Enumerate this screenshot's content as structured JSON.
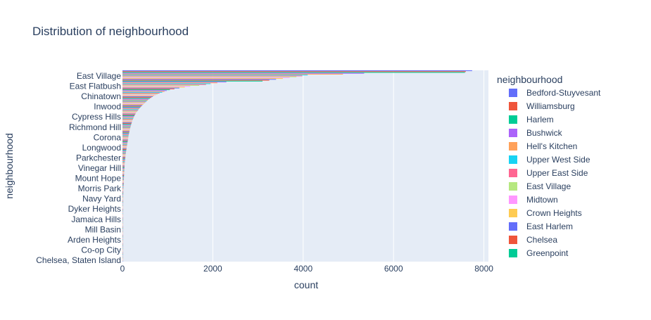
{
  "chart_data": {
    "type": "bar",
    "orientation": "horizontal",
    "title": "Distribution of neighbourhood",
    "xlabel": "count",
    "ylabel": "neighbourhood",
    "xlim": [
      0,
      8100
    ],
    "xticks": [
      0,
      2000,
      4000,
      6000,
      8000
    ],
    "xtick_labels": [
      "0",
      "2000",
      "4000",
      "6000",
      "8000"
    ],
    "grid": true,
    "legend": {
      "title": "neighbourhood",
      "placement": "right",
      "entries": [
        {
          "name": "Bedford-Stuyvesant",
          "color": "#636efa"
        },
        {
          "name": "Williamsburg",
          "color": "#ef553b"
        },
        {
          "name": "Harlem",
          "color": "#00cc96"
        },
        {
          "name": "Bushwick",
          "color": "#ab63fa"
        },
        {
          "name": "Hell's Kitchen",
          "color": "#ffa15a"
        },
        {
          "name": "Upper West Side",
          "color": "#19d3f3"
        },
        {
          "name": "Upper East Side",
          "color": "#ff6692"
        },
        {
          "name": "East Village",
          "color": "#b6e880"
        },
        {
          "name": "Midtown",
          "color": "#ff97ff"
        },
        {
          "name": "Crown Heights",
          "color": "#fecb52"
        },
        {
          "name": "East Harlem",
          "color": "#636efa"
        },
        {
          "name": "Chelsea",
          "color": "#ef553b"
        },
        {
          "name": "Greenpoint",
          "color": "#00cc96"
        }
      ]
    },
    "ytick_labels": [
      "East Village",
      "East Flatbush",
      "Chinatown",
      "Inwood",
      "Cypress Hills",
      "Richmond Hill",
      "Corona",
      "Longwood",
      "Parkchester",
      "Vinegar Hill",
      "Mount Hope",
      "Morris Park",
      "Navy Yard",
      "Dyker Heights",
      "Jamaica Hills",
      "Mill Basin",
      "Arden Heights",
      "Co-op City",
      "Chelsea, Staten Island"
    ],
    "palette": [
      "#636efa",
      "#ef553b",
      "#00cc96",
      "#ab63fa",
      "#ffa15a",
      "#19d3f3",
      "#ff6692",
      "#b6e880",
      "#ff97ff",
      "#fecb52"
    ],
    "bar_count": 221,
    "values": [
      7740,
      7600,
      7580,
      5350,
      4880,
      4100,
      3980,
      3850,
      3700,
      3550,
      3400,
      3250,
      3100,
      2300,
      2100,
      1950,
      1850,
      1700,
      1500,
      1380,
      1260,
      1150,
      1050,
      980,
      930,
      880,
      820,
      780,
      740,
      700,
      670,
      640,
      610,
      580,
      560,
      540,
      520,
      500,
      480,
      460,
      440,
      420,
      400,
      385,
      370,
      355,
      340,
      325,
      310,
      298,
      286,
      275,
      265,
      256,
      248,
      240,
      232,
      225,
      218,
      211,
      205,
      199,
      193,
      188,
      183,
      178,
      173,
      168,
      163,
      159,
      155,
      151,
      147,
      143,
      139,
      135,
      132,
      129,
      126,
      123,
      120,
      117,
      114,
      111,
      108,
      105,
      102,
      99,
      96,
      93,
      90,
      87,
      84,
      81,
      78,
      75,
      72,
      70,
      68,
      66,
      64,
      62,
      60,
      58,
      56,
      54,
      52,
      50,
      48,
      47,
      46,
      45,
      44,
      43,
      42,
      41,
      40,
      39,
      38,
      37,
      36,
      35,
      34,
      33,
      32,
      31,
      30,
      29,
      28,
      27,
      26,
      25,
      24,
      23,
      22,
      21,
      20,
      19,
      18,
      18,
      17,
      17,
      16,
      16,
      15,
      15,
      14,
      14,
      13,
      13,
      12,
      12,
      11,
      11,
      10,
      10,
      10,
      9,
      9,
      9,
      8,
      8,
      8,
      7,
      7,
      7,
      7,
      6,
      6,
      6,
      6,
      5,
      5,
      5,
      5,
      5,
      4,
      4,
      4,
      4,
      4,
      3,
      3,
      3,
      3,
      3,
      3,
      2,
      2,
      2,
      2,
      2,
      2,
      2,
      2,
      2,
      1,
      1,
      1,
      1,
      1,
      1,
      1,
      1,
      1,
      1,
      1,
      1,
      1,
      1,
      1,
      1,
      1,
      1,
      1,
      1,
      1,
      1,
      1,
      1,
      1,
      1,
      1,
      1
    ]
  }
}
